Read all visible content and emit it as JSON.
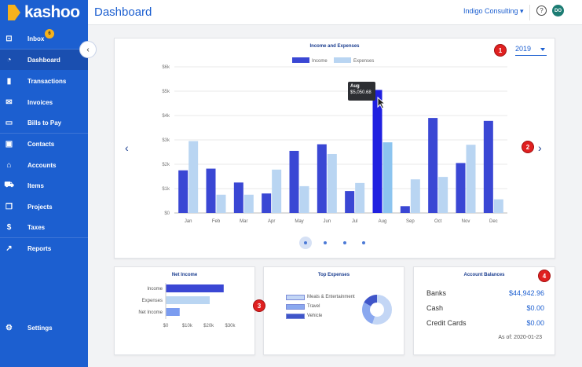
{
  "app": {
    "brand": "kashoo"
  },
  "header": {
    "title": "Dashboard",
    "company": "Indigo Consulting ▾",
    "help_icon": "?",
    "avatar_initials": "DO"
  },
  "sidebar": {
    "inbox_badge": "6",
    "items": [
      {
        "label": "Inbox",
        "icon": "inbox-icon",
        "glyph": "⊡"
      },
      {
        "label": "Dashboard",
        "icon": "pie-chart-icon",
        "glyph": "◔"
      },
      {
        "label": "Transactions",
        "icon": "book-icon",
        "glyph": "▮"
      },
      {
        "label": "Invoices",
        "icon": "envelope-icon",
        "glyph": "✉"
      },
      {
        "label": "Bills to Pay",
        "icon": "card-icon",
        "glyph": "▭"
      },
      {
        "label": "Contacts",
        "icon": "contact-card-icon",
        "glyph": "▣"
      },
      {
        "label": "Accounts",
        "icon": "bank-icon",
        "glyph": "⌂"
      },
      {
        "label": "Items",
        "icon": "cart-icon",
        "glyph": "⛟"
      },
      {
        "label": "Projects",
        "icon": "layers-icon",
        "glyph": "❐"
      },
      {
        "label": "Taxes",
        "icon": "dollar-icon",
        "glyph": "$"
      },
      {
        "label": "Reports",
        "icon": "trend-icon",
        "glyph": "↗"
      }
    ],
    "settings": {
      "label": "Settings",
      "icon": "gear-icon",
      "glyph": "⚙"
    },
    "collapse_glyph": "‹"
  },
  "main_chart": {
    "year": "2019",
    "tooltip": {
      "month": "Aug",
      "value": "$5,050.68"
    },
    "prev_glyph": "‹",
    "next_glyph": "›"
  },
  "chart_data": [
    {
      "type": "bar",
      "title": "Income and Expenses",
      "categories": [
        "Jan",
        "Feb",
        "Mar",
        "Apr",
        "May",
        "Jun",
        "Jul",
        "Aug",
        "Sep",
        "Oct",
        "Nov",
        "Dec"
      ],
      "series": [
        {
          "name": "Income",
          "color": "#3a47d4",
          "values": [
            1750,
            1820,
            1250,
            800,
            2550,
            2820,
            900,
            5050.68,
            280,
            3900,
            2050,
            3780
          ]
        },
        {
          "name": "Expenses",
          "color": "#b9d5f2",
          "values": [
            2950,
            750,
            750,
            1780,
            1100,
            2420,
            1230,
            2900,
            1380,
            1480,
            2800,
            560
          ]
        }
      ],
      "ylim": [
        0,
        6000
      ],
      "yticks": [
        "$0",
        "$1k",
        "$2k",
        "$3k",
        "$4k",
        "$5k",
        "$6k"
      ],
      "legend": "top",
      "grid": true
    },
    {
      "type": "bar",
      "orientation": "horizontal",
      "title": "Net Income",
      "categories": [
        "Income",
        "Expenses",
        "Net Income"
      ],
      "values": [
        27000,
        20500,
        6500
      ],
      "colors": [
        "#3a47d4",
        "#b9d5f2",
        "#7b9cf0"
      ],
      "xlim": [
        0,
        30000
      ],
      "xticks": [
        "$0",
        "$10k",
        "$20k",
        "$30k"
      ]
    },
    {
      "type": "pie",
      "title": "Top Expenses",
      "labels": [
        "Meals & Entertainment",
        "Travel",
        "Vehicle"
      ],
      "values": [
        55,
        28,
        17
      ],
      "colors": [
        "#c3d6f5",
        "#8aa8ef",
        "#3f55c9"
      ]
    }
  ],
  "account_balances": {
    "title": "Account Balances",
    "rows": [
      {
        "label": "Banks",
        "amount": "$44,942.96"
      },
      {
        "label": "Cash",
        "amount": "$0.00"
      },
      {
        "label": "Credit Cards",
        "amount": "$0.00"
      }
    ],
    "as_of": "As of: 2020-01-23"
  },
  "callouts": [
    "1",
    "2",
    "3",
    "4"
  ]
}
